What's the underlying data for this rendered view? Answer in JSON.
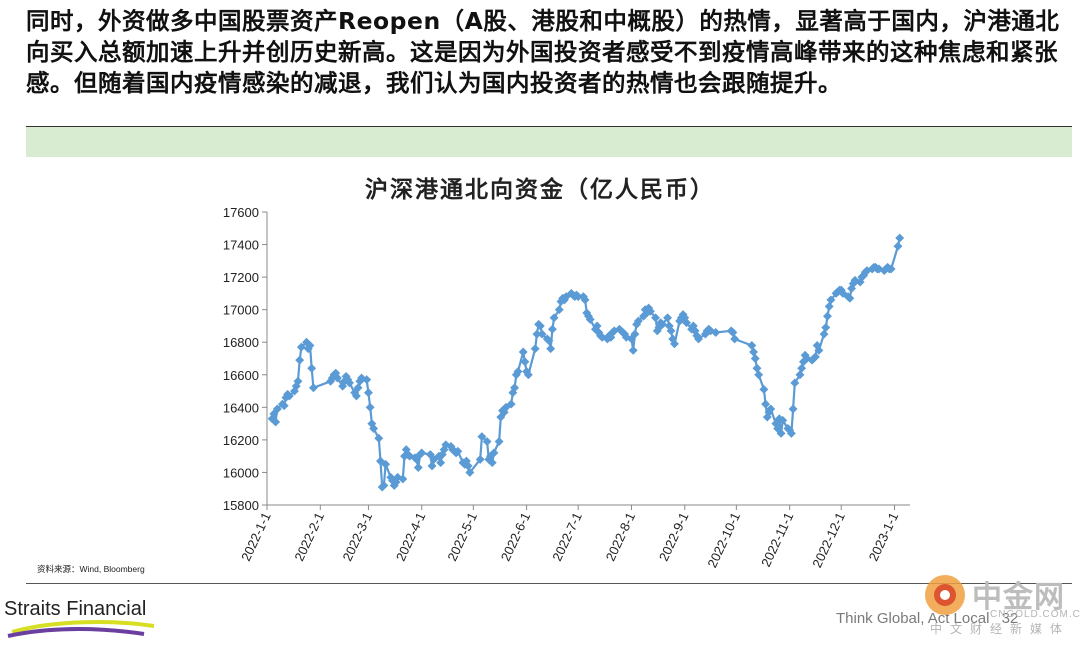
{
  "intro_text": "同时，外资做多中国股票资产Reopen（A股、港股和中概股）的热情，显著高于国内，沪港通北向买入总额加速上升并创历史新高。这是因为外国投资者感受不到疫情高峰带来的这种焦虑和紧张感。但随着国内疫情感染的减退，我们认为国内投资者的热情也会跟随提升。",
  "footer": {
    "source": "资料来源：Wind, Bloomberg",
    "brand": "Straits Financial",
    "tagline": "Think Global, Act Local",
    "page_number": "32",
    "watermark": {
      "name": "中金网",
      "url": "CNGOLD.COM.CN",
      "slogan": "中文财经新媒体"
    }
  },
  "colors": {
    "series": "#5b9bd5",
    "band": "#d8ecd2"
  },
  "chart_data": {
    "type": "line",
    "title": "沪深港通北向资金（亿人民币）",
    "ylim": [
      15800,
      17600
    ],
    "yticks": [
      "15800",
      "16000",
      "16200",
      "16400",
      "16600",
      "16800",
      "17000",
      "17200",
      "17400",
      "17600"
    ],
    "xlim": [
      "2022-1-1",
      "2023-1-10"
    ],
    "xticks": [
      "2022-1-1",
      "2022-2-1",
      "2022-3-1",
      "2022-4-1",
      "2022-5-1",
      "2022-6-1",
      "2022-7-1",
      "2022-8-1",
      "2022-9-1",
      "2022-10-1",
      "2022-11-1",
      "2022-12-1",
      "2023-1-1"
    ],
    "grid": false,
    "legend": "none",
    "marker": "diamond",
    "points": [
      [
        "2022-1-4",
        16330
      ],
      [
        "2022-1-5",
        16360
      ],
      [
        "2022-1-6",
        16310
      ],
      [
        "2022-1-7",
        16390
      ],
      [
        "2022-1-10",
        16420
      ],
      [
        "2022-1-11",
        16410
      ],
      [
        "2022-1-12",
        16460
      ],
      [
        "2022-1-13",
        16480
      ],
      [
        "2022-1-14",
        16470
      ],
      [
        "2022-1-17",
        16500
      ],
      [
        "2022-1-18",
        16530
      ],
      [
        "2022-1-19",
        16560
      ],
      [
        "2022-1-20",
        16690
      ],
      [
        "2022-1-21",
        16770
      ],
      [
        "2022-1-24",
        16800
      ],
      [
        "2022-1-25",
        16760
      ],
      [
        "2022-1-26",
        16780
      ],
      [
        "2022-1-27",
        16640
      ],
      [
        "2022-1-28",
        16520
      ],
      [
        "2022-2-7",
        16560
      ],
      [
        "2022-2-8",
        16580
      ],
      [
        "2022-2-9",
        16600
      ],
      [
        "2022-2-10",
        16610
      ],
      [
        "2022-2-11",
        16580
      ],
      [
        "2022-2-14",
        16530
      ],
      [
        "2022-2-15",
        16560
      ],
      [
        "2022-2-16",
        16590
      ],
      [
        "2022-2-17",
        16570
      ],
      [
        "2022-2-18",
        16550
      ],
      [
        "2022-2-21",
        16490
      ],
      [
        "2022-2-22",
        16470
      ],
      [
        "2022-2-23",
        16520
      ],
      [
        "2022-2-24",
        16560
      ],
      [
        "2022-2-25",
        16580
      ],
      [
        "2022-2-28",
        16570
      ],
      [
        "2022-3-1",
        16490
      ],
      [
        "2022-3-2",
        16400
      ],
      [
        "2022-3-3",
        16300
      ],
      [
        "2022-3-4",
        16270
      ],
      [
        "2022-3-7",
        16210
      ],
      [
        "2022-3-8",
        16070
      ],
      [
        "2022-3-9",
        15910
      ],
      [
        "2022-3-10",
        15920
      ],
      [
        "2022-3-11",
        16050
      ],
      [
        "2022-3-14",
        15970
      ],
      [
        "2022-3-15",
        15950
      ],
      [
        "2022-3-16",
        15920
      ],
      [
        "2022-3-17",
        15940
      ],
      [
        "2022-3-18",
        15970
      ],
      [
        "2022-3-21",
        15960
      ],
      [
        "2022-3-22",
        16100
      ],
      [
        "2022-3-23",
        16140
      ],
      [
        "2022-3-24",
        16110
      ],
      [
        "2022-3-25",
        16100
      ],
      [
        "2022-3-28",
        16090
      ],
      [
        "2022-3-29",
        16080
      ],
      [
        "2022-3-30",
        16030
      ],
      [
        "2022-3-31",
        16110
      ],
      [
        "2022-4-1",
        16120
      ],
      [
        "2022-4-6",
        16110
      ],
      [
        "2022-4-7",
        16040
      ],
      [
        "2022-4-8",
        16080
      ],
      [
        "2022-4-11",
        16100
      ],
      [
        "2022-4-12",
        16060
      ],
      [
        "2022-4-13",
        16110
      ],
      [
        "2022-4-14",
        16140
      ],
      [
        "2022-4-15",
        16170
      ],
      [
        "2022-4-18",
        16160
      ],
      [
        "2022-4-19",
        16140
      ],
      [
        "2022-4-20",
        16130
      ],
      [
        "2022-4-21",
        16120
      ],
      [
        "2022-4-22",
        16130
      ],
      [
        "2022-4-25",
        16060
      ],
      [
        "2022-4-26",
        16050
      ],
      [
        "2022-4-27",
        16070
      ],
      [
        "2022-4-28",
        16040
      ],
      [
        "2022-4-29",
        16000
      ],
      [
        "2022-5-5",
        16080
      ],
      [
        "2022-5-6",
        16220
      ],
      [
        "2022-5-9",
        16190
      ],
      [
        "2022-5-10",
        16080
      ],
      [
        "2022-5-11",
        16100
      ],
      [
        "2022-5-12",
        16060
      ],
      [
        "2022-5-13",
        16120
      ],
      [
        "2022-5-16",
        16190
      ],
      [
        "2022-5-17",
        16340
      ],
      [
        "2022-5-18",
        16380
      ],
      [
        "2022-5-19",
        16370
      ],
      [
        "2022-5-20",
        16400
      ],
      [
        "2022-5-23",
        16420
      ],
      [
        "2022-5-24",
        16490
      ],
      [
        "2022-5-25",
        16520
      ],
      [
        "2022-5-26",
        16600
      ],
      [
        "2022-5-27",
        16620
      ],
      [
        "2022-5-30",
        16740
      ],
      [
        "2022-5-31",
        16680
      ],
      [
        "2022-6-1",
        16620
      ],
      [
        "2022-6-2",
        16600
      ],
      [
        "2022-6-6",
        16760
      ],
      [
        "2022-6-7",
        16850
      ],
      [
        "2022-6-8",
        16910
      ],
      [
        "2022-6-9",
        16900
      ],
      [
        "2022-6-10",
        16850
      ],
      [
        "2022-6-13",
        16820
      ],
      [
        "2022-6-14",
        16810
      ],
      [
        "2022-6-15",
        16760
      ],
      [
        "2022-6-16",
        16880
      ],
      [
        "2022-6-17",
        16950
      ],
      [
        "2022-6-20",
        17000
      ],
      [
        "2022-6-21",
        17050
      ],
      [
        "2022-6-22",
        17070
      ],
      [
        "2022-6-23",
        17060
      ],
      [
        "2022-6-24",
        17080
      ],
      [
        "2022-6-27",
        17100
      ],
      [
        "2022-6-28",
        17090
      ],
      [
        "2022-6-29",
        17080
      ],
      [
        "2022-6-30",
        17090
      ],
      [
        "2022-7-1",
        17080
      ],
      [
        "2022-7-4",
        17080
      ],
      [
        "2022-7-5",
        17060
      ],
      [
        "2022-7-6",
        16980
      ],
      [
        "2022-7-7",
        16960
      ],
      [
        "2022-7-8",
        16940
      ],
      [
        "2022-7-11",
        16880
      ],
      [
        "2022-7-12",
        16900
      ],
      [
        "2022-7-13",
        16860
      ],
      [
        "2022-7-14",
        16840
      ],
      [
        "2022-7-15",
        16830
      ],
      [
        "2022-7-18",
        16820
      ],
      [
        "2022-7-19",
        16840
      ],
      [
        "2022-7-20",
        16830
      ],
      [
        "2022-7-21",
        16860
      ],
      [
        "2022-7-22",
        16870
      ],
      [
        "2022-7-25",
        16880
      ],
      [
        "2022-7-26",
        16870
      ],
      [
        "2022-7-27",
        16860
      ],
      [
        "2022-7-28",
        16850
      ],
      [
        "2022-7-29",
        16830
      ],
      [
        "2022-8-1",
        16820
      ],
      [
        "2022-8-2",
        16750
      ],
      [
        "2022-8-3",
        16850
      ],
      [
        "2022-8-4",
        16910
      ],
      [
        "2022-8-5",
        16930
      ],
      [
        "2022-8-8",
        16960
      ],
      [
        "2022-8-9",
        17000
      ],
      [
        "2022-8-10",
        16980
      ],
      [
        "2022-8-11",
        17010
      ],
      [
        "2022-8-12",
        16990
      ],
      [
        "2022-8-15",
        16950
      ],
      [
        "2022-8-16",
        16870
      ],
      [
        "2022-8-17",
        16890
      ],
      [
        "2022-8-18",
        16920
      ],
      [
        "2022-8-19",
        16910
      ],
      [
        "2022-8-22",
        16950
      ],
      [
        "2022-8-23",
        16900
      ],
      [
        "2022-8-24",
        16870
      ],
      [
        "2022-8-25",
        16820
      ],
      [
        "2022-8-26",
        16790
      ],
      [
        "2022-8-29",
        16930
      ],
      [
        "2022-8-30",
        16950
      ],
      [
        "2022-8-31",
        16970
      ],
      [
        "2022-9-1",
        16950
      ],
      [
        "2022-9-2",
        16920
      ],
      [
        "2022-9-5",
        16880
      ],
      [
        "2022-9-6",
        16900
      ],
      [
        "2022-9-7",
        16870
      ],
      [
        "2022-9-8",
        16840
      ],
      [
        "2022-9-9",
        16820
      ],
      [
        "2022-9-13",
        16850
      ],
      [
        "2022-9-14",
        16870
      ],
      [
        "2022-9-15",
        16880
      ],
      [
        "2022-9-16",
        16870
      ],
      [
        "2022-9-19",
        16860
      ],
      [
        "2022-9-28",
        16870
      ],
      [
        "2022-9-29",
        16860
      ],
      [
        "2022-9-30",
        16820
      ],
      [
        "2022-10-10",
        16780
      ],
      [
        "2022-10-11",
        16740
      ],
      [
        "2022-10-12",
        16700
      ],
      [
        "2022-10-13",
        16640
      ],
      [
        "2022-10-14",
        16600
      ],
      [
        "2022-10-17",
        16510
      ],
      [
        "2022-10-18",
        16420
      ],
      [
        "2022-10-19",
        16340
      ],
      [
        "2022-10-20",
        16370
      ],
      [
        "2022-10-21",
        16390
      ],
      [
        "2022-10-24",
        16300
      ],
      [
        "2022-10-25",
        16270
      ],
      [
        "2022-10-26",
        16330
      ],
      [
        "2022-10-27",
        16240
      ],
      [
        "2022-10-28",
        16320
      ],
      [
        "2022-10-31",
        16270
      ],
      [
        "2022-11-1",
        16260
      ],
      [
        "2022-11-2",
        16240
      ],
      [
        "2022-11-3",
        16390
      ],
      [
        "2022-11-4",
        16550
      ],
      [
        "2022-11-7",
        16600
      ],
      [
        "2022-11-8",
        16640
      ],
      [
        "2022-11-9",
        16680
      ],
      [
        "2022-11-10",
        16720
      ],
      [
        "2022-11-11",
        16700
      ],
      [
        "2022-11-14",
        16690
      ],
      [
        "2022-11-15",
        16700
      ],
      [
        "2022-11-16",
        16710
      ],
      [
        "2022-11-17",
        16780
      ],
      [
        "2022-11-18",
        16750
      ],
      [
        "2022-11-21",
        16850
      ],
      [
        "2022-11-22",
        16890
      ],
      [
        "2022-11-23",
        16960
      ],
      [
        "2022-11-24",
        17020
      ],
      [
        "2022-11-25",
        17060
      ],
      [
        "2022-11-28",
        17100
      ],
      [
        "2022-11-29",
        17110
      ],
      [
        "2022-11-30",
        17120
      ],
      [
        "2022-12-1",
        17120
      ],
      [
        "2022-12-2",
        17100
      ],
      [
        "2022-12-5",
        17080
      ],
      [
        "2022-12-6",
        17070
      ],
      [
        "2022-12-7",
        17130
      ],
      [
        "2022-12-8",
        17160
      ],
      [
        "2022-12-9",
        17180
      ],
      [
        "2022-12-12",
        17170
      ],
      [
        "2022-12-13",
        17200
      ],
      [
        "2022-12-14",
        17210
      ],
      [
        "2022-12-15",
        17230
      ],
      [
        "2022-12-16",
        17240
      ],
      [
        "2022-12-19",
        17250
      ],
      [
        "2022-12-20",
        17260
      ],
      [
        "2022-12-21",
        17260
      ],
      [
        "2022-12-22",
        17250
      ],
      [
        "2022-12-23",
        17250
      ],
      [
        "2022-12-26",
        17240
      ],
      [
        "2022-12-27",
        17250
      ],
      [
        "2022-12-28",
        17260
      ],
      [
        "2022-12-29",
        17250
      ],
      [
        "2022-12-30",
        17250
      ],
      [
        "2023-1-3",
        17390
      ],
      [
        "2023-1-4",
        17440
      ]
    ]
  }
}
